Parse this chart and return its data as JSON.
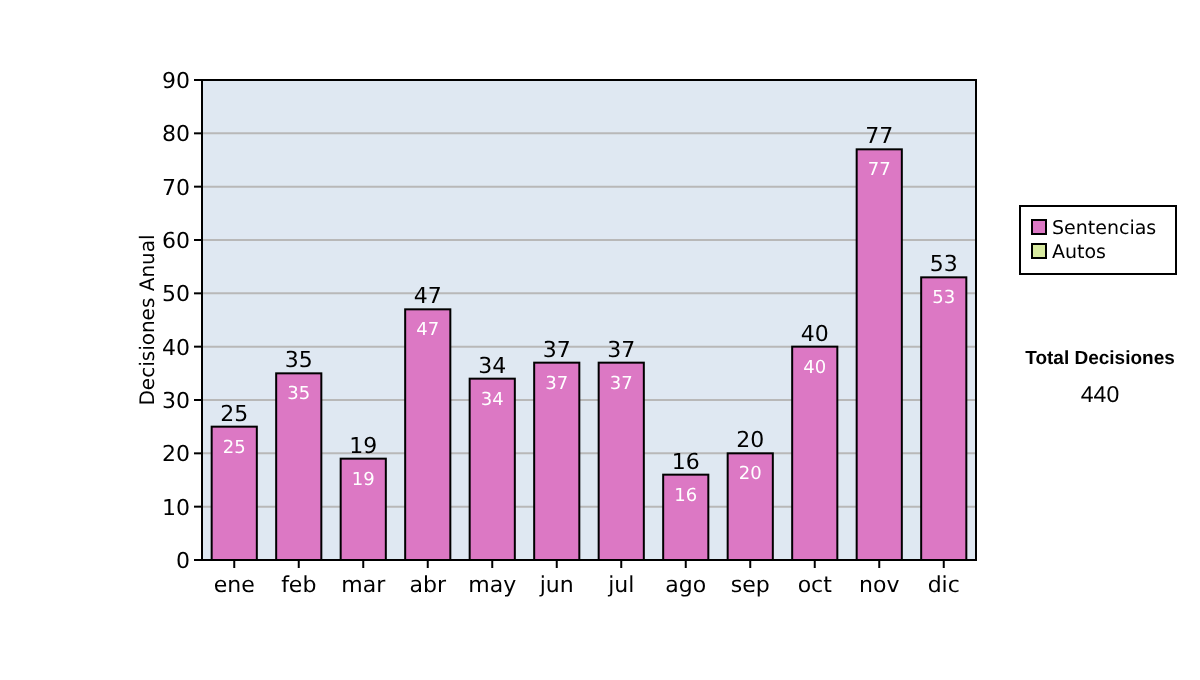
{
  "chart_data": {
    "type": "bar",
    "ylabel": "Decisiones Anual",
    "categories": [
      "ene",
      "feb",
      "mar",
      "abr",
      "may",
      "jun",
      "jul",
      "ago",
      "sep",
      "oct",
      "nov",
      "dic"
    ],
    "series": [
      {
        "name": "Sentencias",
        "color": "#dc78c4",
        "values": [
          25,
          35,
          19,
          47,
          34,
          37,
          37,
          16,
          20,
          40,
          77,
          53
        ]
      },
      {
        "name": "Autos",
        "color": "#d8eaa0",
        "values": [
          null,
          null,
          null,
          null,
          null,
          null,
          null,
          null,
          null,
          null,
          null,
          null
        ]
      }
    ],
    "stacked": true,
    "data_labels": true,
    "totals": [
      "25",
      "35",
      "19",
      "47",
      "34",
      "37",
      "37",
      "16",
      "20",
      "40",
      "77",
      "53"
    ],
    "ylim": [
      0,
      90
    ],
    "yticks": [
      0,
      10,
      20,
      30,
      40,
      50,
      60,
      70,
      80,
      90
    ],
    "grid": "y",
    "legend": "right",
    "annotations": [
      "Total Decisiones",
      "440"
    ]
  }
}
